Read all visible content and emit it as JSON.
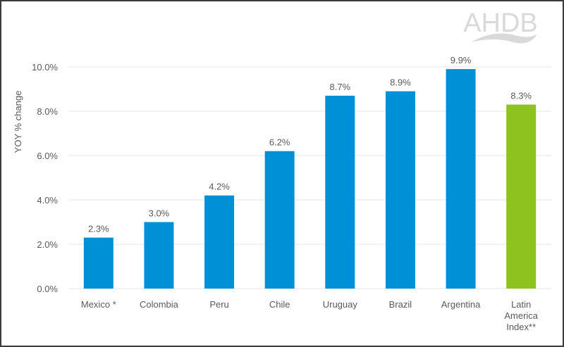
{
  "logo": {
    "text": "AHDB",
    "color": "#d9d9d9"
  },
  "chart_data": {
    "type": "bar",
    "title": "",
    "xlabel": "",
    "ylabel": "YOY % change",
    "ylim": [
      0,
      10
    ],
    "yticks": [
      "0.0%",
      "2.0%",
      "4.0%",
      "6.0%",
      "8.0%",
      "10.0%"
    ],
    "grid": true,
    "categories": [
      "Mexico *",
      "Colombia",
      "Peru",
      "Chile",
      "Uruguay",
      "Brazil",
      "Argentina",
      "Latin America Index**"
    ],
    "category_lines": [
      [
        "Mexico *"
      ],
      [
        "Colombia"
      ],
      [
        "Peru"
      ],
      [
        "Chile"
      ],
      [
        "Uruguay"
      ],
      [
        "Brazil"
      ],
      [
        "Argentina"
      ],
      [
        "Latin",
        "America",
        "Index**"
      ]
    ],
    "values": [
      2.3,
      3.0,
      4.2,
      6.2,
      8.7,
      8.9,
      9.9,
      8.3
    ],
    "data_labels": [
      "2.3%",
      "3.0%",
      "4.2%",
      "6.2%",
      "8.7%",
      "8.9%",
      "9.9%",
      "8.3%"
    ],
    "colors": [
      "#0090d6",
      "#0090d6",
      "#0090d6",
      "#0090d6",
      "#0090d6",
      "#0090d6",
      "#0090d6",
      "#8dc21f"
    ]
  }
}
